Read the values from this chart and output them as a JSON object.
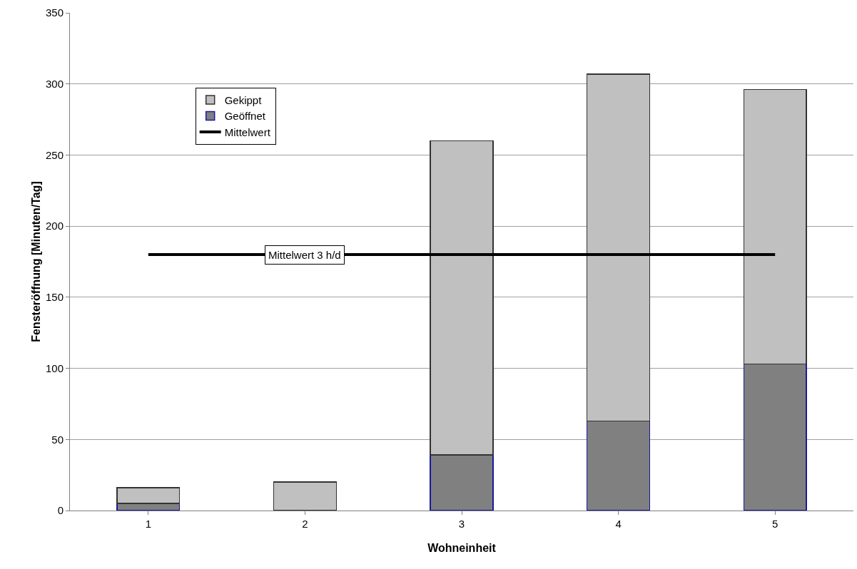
{
  "chart_data": {
    "type": "bar",
    "stacked": true,
    "xlabel": "Wohneinheit",
    "ylabel": "Fensteröffnung [Minuten/Tag]",
    "categories": [
      "1",
      "2",
      "3",
      "4",
      "5"
    ],
    "series": [
      {
        "name": "Geöffnet",
        "color": "#808080",
        "values": [
          5,
          0,
          39,
          63,
          103
        ]
      },
      {
        "name": "Gekippt",
        "color": "#c0c0c0",
        "values": [
          11,
          20,
          221,
          244,
          193
        ]
      },
      {
        "name": "Mittelwert",
        "type": "line",
        "color": "#000000",
        "values": [
          180,
          null,
          180,
          180,
          180
        ]
      }
    ],
    "ylim": [
      0,
      350
    ],
    "yticks": [
      0,
      50,
      100,
      150,
      200,
      250,
      300,
      350
    ],
    "grid": "y",
    "legend": "top left",
    "marker": "none",
    "annotations": [
      {
        "text": "Mittelwert 3 h/d",
        "x": "2",
        "y": 180
      }
    ]
  }
}
